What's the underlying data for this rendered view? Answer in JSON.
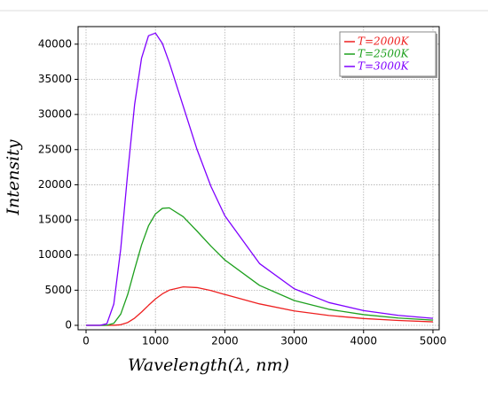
{
  "chart_data": {
    "type": "line",
    "xlabel": "Wavelength(λ, nm)",
    "ylabel": "Intensity",
    "x": [
      0,
      200,
      300,
      400,
      500,
      600,
      700,
      800,
      900,
      1000,
      1100,
      1200,
      1400,
      1600,
      1800,
      2000,
      2500,
      3000,
      3500,
      4000,
      4500,
      5000
    ],
    "series": [
      {
        "name": "T=2000K",
        "color": "#ee2020",
        "values": [
          0,
          0,
          0,
          7,
          90,
          400,
          1020,
          1890,
          2850,
          3750,
          4480,
          5010,
          5470,
          5370,
          4950,
          4390,
          3050,
          2050,
          1400,
          970,
          690,
          500
        ]
      },
      {
        "name": "T=2500K",
        "color": "#1ea01e",
        "values": [
          0,
          0,
          10,
          280,
          1600,
          4380,
          7990,
          11440,
          14160,
          15850,
          16640,
          16710,
          15460,
          13400,
          11260,
          9300,
          5680,
          3530,
          2280,
          1520,
          1040,
          740
        ]
      },
      {
        "name": "T=3000K",
        "color": "#7f00ff",
        "values": [
          0,
          1,
          230,
          3030,
          10900,
          21660,
          31430,
          38020,
          41200,
          41580,
          40100,
          37370,
          31190,
          25000,
          19770,
          15590,
          8790,
          5200,
          3240,
          2100,
          1420,
          990
        ]
      }
    ],
    "xlim": [
      -115,
      5090
    ],
    "ylim": [
      -630,
      42500
    ],
    "xticks": [
      0,
      1000,
      2000,
      3000,
      4000,
      5000
    ],
    "yticks": [
      0,
      5000,
      10000,
      15000,
      20000,
      25000,
      30000,
      35000,
      40000
    ],
    "grid": true,
    "legend": "upper right"
  }
}
